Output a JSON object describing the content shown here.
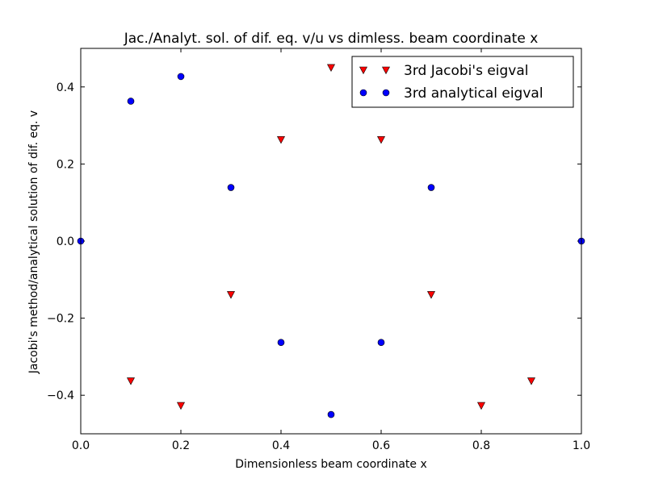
{
  "chart_data": {
    "type": "scatter",
    "title": "Jac./Analyt. sol. of dif. eq. v/u vs dimless. beam coordinate x",
    "xlabel": "Dimensionless beam coordinate x",
    "ylabel": "Jacobi's method/analytical solution of dif. eq. v",
    "xlim": [
      0.0,
      1.0
    ],
    "ylim": [
      -0.5,
      0.5
    ],
    "xticks": [
      0.0,
      0.2,
      0.4,
      0.6,
      0.8,
      1.0
    ],
    "xtick_labels": [
      "0.0",
      "0.2",
      "0.4",
      "0.6",
      "0.8",
      "1.0"
    ],
    "yticks": [
      -0.4,
      -0.2,
      0.0,
      0.2,
      0.4
    ],
    "ytick_labels": [
      "−0.4",
      "−0.2",
      "0.0",
      "0.2",
      "0.4"
    ],
    "grid": false,
    "legend_position": "top-right",
    "series": [
      {
        "name": "3rd Jacobi's eigval",
        "marker": "triangle-down",
        "color": "#ff0000",
        "x": [
          0.1,
          0.2,
          0.3,
          0.4,
          0.5,
          0.6,
          0.7,
          0.8,
          0.9
        ],
        "y": [
          -0.363,
          -0.427,
          -0.139,
          0.263,
          0.45,
          0.263,
          -0.139,
          -0.427,
          -0.363
        ]
      },
      {
        "name": "3rd analytical eigval",
        "marker": "circle",
        "color": "#0000ff",
        "x": [
          0.0,
          0.1,
          0.2,
          0.3,
          0.4,
          0.5,
          0.6,
          0.7,
          1.0
        ],
        "y": [
          0.0,
          0.363,
          0.427,
          0.139,
          -0.263,
          -0.45,
          -0.263,
          0.139,
          0.0
        ]
      }
    ]
  }
}
